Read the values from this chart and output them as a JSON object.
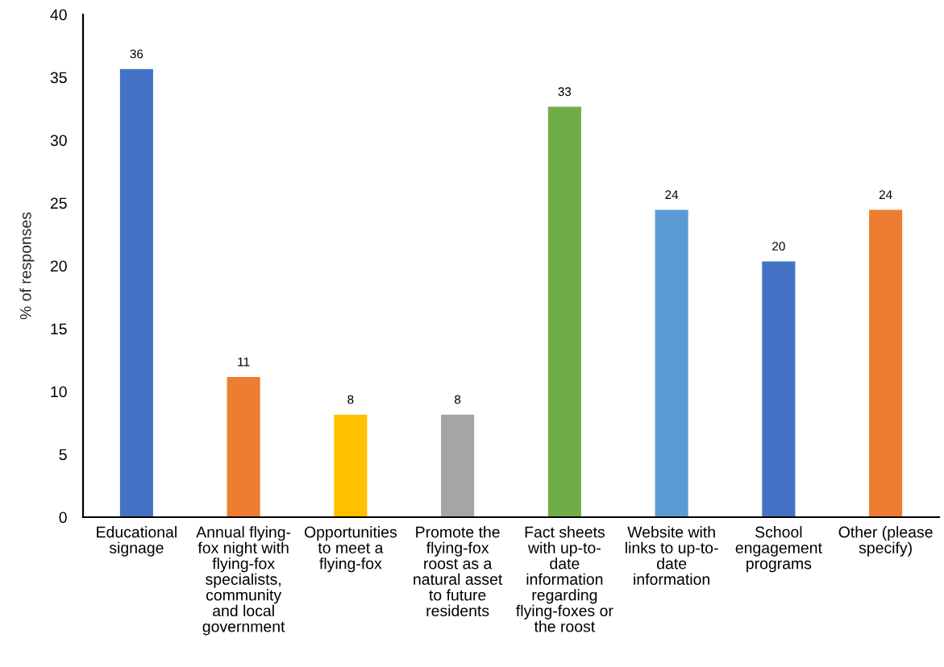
{
  "chart_data": {
    "type": "bar",
    "ylabel": "% of responses",
    "categories": [
      "Educational signage",
      "Annual flying-fox night with flying-fox specialists, community and local government",
      "Opportunities to meet a flying-fox",
      "Promote the flying-fox roost as a natural asset to future residents",
      "Fact sheets with up-to-date information regarding flying-foxes or the roost",
      "Website with links to up-to-date information",
      "School engagement programs",
      "Other (please specify)"
    ],
    "values": [
      35.7,
      11.2,
      8.2,
      8.2,
      32.7,
      24.5,
      20.4,
      24.5
    ],
    "colors": [
      "#4472c4",
      "#ed7d31",
      "#ffc000",
      "#a5a5a5",
      "#70ad47",
      "#5b9bd5",
      "#4472c4",
      "#ed7d31"
    ],
    "value_labels": [
      "36",
      "11",
      "8",
      "8",
      "33",
      "24",
      "20",
      "24"
    ],
    "ylim": [
      0,
      40
    ],
    "yticks": [
      0,
      5,
      10,
      15,
      20,
      25,
      30,
      35,
      40
    ]
  }
}
